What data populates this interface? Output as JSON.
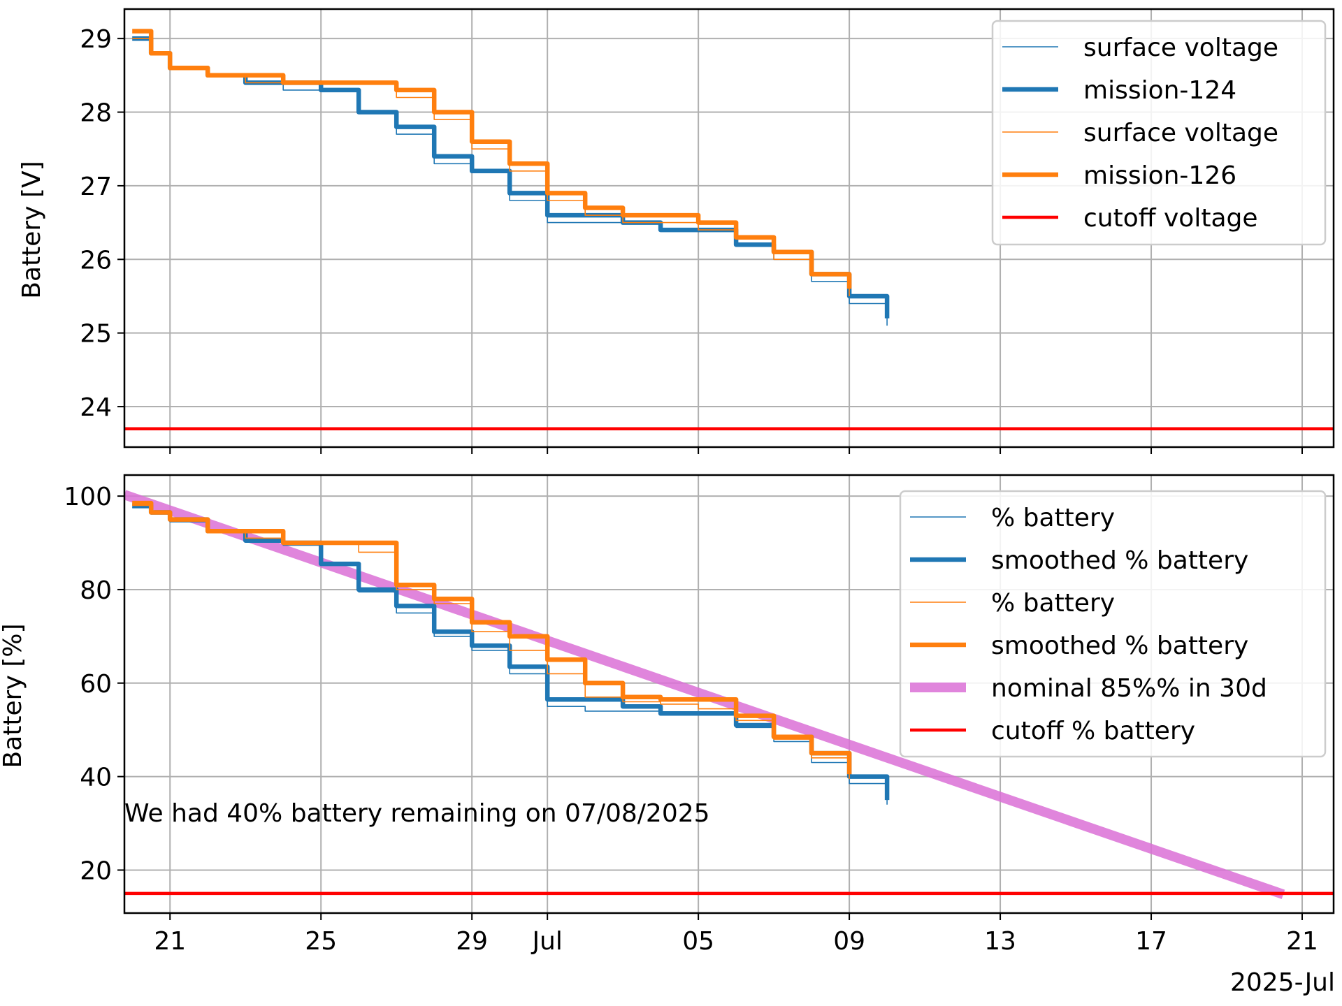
{
  "chart_data": [
    {
      "type": "line",
      "ylabel": "Battery [V]",
      "ylim": [
        23.45,
        29.4
      ],
      "yticks": [
        24,
        25,
        26,
        27,
        28,
        29
      ],
      "xlim": [
        "2025-06-19 19:00",
        "2025-07-21 20:00"
      ],
      "grid": true,
      "legend": "top-right",
      "series": [
        {
          "name": "surface voltage",
          "color": "#1f77b4",
          "width": "thin",
          "x": [
            "2025-06-20 00:00",
            "2025-06-20 12:00",
            "2025-06-21 00:00",
            "2025-06-22 00:00",
            "2025-06-23 00:00",
            "2025-06-24 00:00",
            "2025-06-25 00:00",
            "2025-06-26 00:00",
            "2025-06-27 00:00",
            "2025-06-28 00:00",
            "2025-06-29 00:00",
            "2025-06-30 00:00",
            "2025-07-01 00:00",
            "2025-07-02 00:00",
            "2025-07-03 00:00",
            "2025-07-04 00:00",
            "2025-07-05 00:00",
            "2025-07-06 00:00",
            "2025-07-07 00:00",
            "2025-07-08 00:00",
            "2025-07-09 00:00",
            "2025-07-10 00:00"
          ],
          "values": [
            29.0,
            28.8,
            28.6,
            28.5,
            28.4,
            28.3,
            28.3,
            28.0,
            27.7,
            27.3,
            27.2,
            26.8,
            26.5,
            26.5,
            26.5,
            26.4,
            26.4,
            26.2,
            26.0,
            25.7,
            25.4,
            25.1
          ]
        },
        {
          "name": "mission-124",
          "color": "#1f77b4",
          "width": "thick",
          "x": [
            "2025-06-20 00:00",
            "2025-06-20 12:00",
            "2025-06-21 00:00",
            "2025-06-22 00:00",
            "2025-06-23 00:00",
            "2025-06-24 00:00",
            "2025-06-25 00:00",
            "2025-06-26 00:00",
            "2025-06-27 00:00",
            "2025-06-28 00:00",
            "2025-06-29 00:00",
            "2025-06-30 00:00",
            "2025-07-01 00:00",
            "2025-07-02 00:00",
            "2025-07-03 00:00",
            "2025-07-04 00:00",
            "2025-07-05 00:00",
            "2025-07-06 00:00",
            "2025-07-07 00:00",
            "2025-07-08 00:00",
            "2025-07-09 00:00",
            "2025-07-10 00:00"
          ],
          "values": [
            29.0,
            28.8,
            28.6,
            28.5,
            28.4,
            28.4,
            28.3,
            28.0,
            27.8,
            27.4,
            27.2,
            26.9,
            26.6,
            26.6,
            26.5,
            26.4,
            26.4,
            26.2,
            26.1,
            25.8,
            25.5,
            25.2
          ]
        },
        {
          "name": "surface voltage",
          "color": "#ff7f0e",
          "width": "thin",
          "x": [
            "2025-06-20 00:00",
            "2025-06-20 12:00",
            "2025-06-21 00:00",
            "2025-06-22 00:00",
            "2025-06-23 00:00",
            "2025-06-24 00:00",
            "2025-06-25 00:00",
            "2025-06-26 00:00",
            "2025-06-27 00:00",
            "2025-06-28 00:00",
            "2025-06-29 00:00",
            "2025-06-30 00:00",
            "2025-07-01 00:00",
            "2025-07-02 00:00",
            "2025-07-03 00:00",
            "2025-07-04 00:00",
            "2025-07-05 00:00",
            "2025-07-06 00:00",
            "2025-07-07 00:00",
            "2025-07-08 00:00",
            "2025-07-09 00:00"
          ],
          "values": [
            29.0,
            28.8,
            28.6,
            28.5,
            28.4,
            28.4,
            28.4,
            28.4,
            28.2,
            27.9,
            27.5,
            27.2,
            26.8,
            26.6,
            26.5,
            26.5,
            26.4,
            26.3,
            26.0,
            25.8,
            25.5
          ]
        },
        {
          "name": "mission-126",
          "color": "#ff7f0e",
          "width": "thick",
          "x": [
            "2025-06-20 00:00",
            "2025-06-20 12:00",
            "2025-06-21 00:00",
            "2025-06-22 00:00",
            "2025-06-23 00:00",
            "2025-06-24 00:00",
            "2025-06-25 00:00",
            "2025-06-26 00:00",
            "2025-06-27 00:00",
            "2025-06-28 00:00",
            "2025-06-29 00:00",
            "2025-06-30 00:00",
            "2025-07-01 00:00",
            "2025-07-02 00:00",
            "2025-07-03 00:00",
            "2025-07-04 00:00",
            "2025-07-05 00:00",
            "2025-07-06 00:00",
            "2025-07-07 00:00",
            "2025-07-08 00:00",
            "2025-07-09 00:00"
          ],
          "values": [
            29.1,
            28.8,
            28.6,
            28.5,
            28.5,
            28.4,
            28.4,
            28.4,
            28.3,
            28.0,
            27.6,
            27.3,
            26.9,
            26.7,
            26.6,
            26.6,
            26.5,
            26.3,
            26.1,
            25.8,
            25.6
          ]
        },
        {
          "name": "cutoff voltage",
          "color": "#ff0000",
          "width": "medium",
          "x": [
            "2025-06-19 19:00",
            "2025-07-21 20:00"
          ],
          "values": [
            23.7,
            23.7
          ]
        }
      ]
    },
    {
      "type": "line",
      "xlabel": "2025-Jul",
      "ylabel": "Battery [%]",
      "ylim": [
        10.8,
        104.5
      ],
      "yticks": [
        20,
        40,
        60,
        80,
        100
      ],
      "xticks": [
        "21",
        "25",
        "29",
        "Jul",
        "05",
        "09",
        "13",
        "17",
        "21"
      ],
      "xlim": [
        "2025-06-19 19:00",
        "2025-07-21 20:00"
      ],
      "grid": true,
      "legend": "top-right",
      "annotation": "We had 40% battery remaining on 07/08/2025",
      "series": [
        {
          "name": "% battery",
          "color": "#1f77b4",
          "width": "thin",
          "x": [
            "2025-06-20 00:00",
            "2025-06-20 12:00",
            "2025-06-21 00:00",
            "2025-06-22 00:00",
            "2025-06-23 00:00",
            "2025-06-24 00:00",
            "2025-06-25 00:00",
            "2025-06-26 00:00",
            "2025-06-27 00:00",
            "2025-06-28 00:00",
            "2025-06-29 00:00",
            "2025-06-30 00:00",
            "2025-07-01 00:00",
            "2025-07-02 00:00",
            "2025-07-03 00:00",
            "2025-07-04 00:00",
            "2025-07-05 00:00",
            "2025-07-06 00:00",
            "2025-07-07 00:00",
            "2025-07-08 00:00",
            "2025-07-09 00:00",
            "2025-07-10 00:00"
          ],
          "values": [
            97.5,
            96.5,
            94.5,
            92.5,
            90.5,
            89.5,
            85.5,
            79.5,
            75,
            70,
            67,
            62,
            55,
            54,
            54,
            53.5,
            53.5,
            50.5,
            47.5,
            43,
            38.5,
            34
          ]
        },
        {
          "name": "smoothed % battery",
          "color": "#1f77b4",
          "width": "thick",
          "x": [
            "2025-06-20 00:00",
            "2025-06-20 12:00",
            "2025-06-21 00:00",
            "2025-06-22 00:00",
            "2025-06-23 00:00",
            "2025-06-24 00:00",
            "2025-06-25 00:00",
            "2025-06-26 00:00",
            "2025-06-27 00:00",
            "2025-06-28 00:00",
            "2025-06-29 00:00",
            "2025-06-30 00:00",
            "2025-07-01 00:00",
            "2025-07-02 00:00",
            "2025-07-03 00:00",
            "2025-07-04 00:00",
            "2025-07-05 00:00",
            "2025-07-06 00:00",
            "2025-07-07 00:00",
            "2025-07-08 00:00",
            "2025-07-09 00:00",
            "2025-07-10 00:00"
          ],
          "values": [
            98,
            96.5,
            95,
            92.5,
            90.5,
            90,
            85.5,
            80,
            76.5,
            71,
            68,
            63.5,
            56.5,
            56.5,
            55,
            53.5,
            53.5,
            51,
            48.5,
            45,
            40,
            35
          ]
        },
        {
          "name": "% battery",
          "color": "#ff7f0e",
          "width": "thin",
          "x": [
            "2025-06-20 00:00",
            "2025-06-20 12:00",
            "2025-06-21 00:00",
            "2025-06-22 00:00",
            "2025-06-23 00:00",
            "2025-06-24 00:00",
            "2025-06-25 00:00",
            "2025-06-26 00:00",
            "2025-06-27 00:00",
            "2025-06-28 00:00",
            "2025-06-29 00:00",
            "2025-06-30 00:00",
            "2025-07-01 00:00",
            "2025-07-02 00:00",
            "2025-07-03 00:00",
            "2025-07-04 00:00",
            "2025-07-05 00:00",
            "2025-07-06 00:00",
            "2025-07-07 00:00",
            "2025-07-08 00:00",
            "2025-07-09 00:00"
          ],
          "values": [
            98,
            96.5,
            95,
            92.5,
            91,
            90,
            90,
            88,
            80,
            77,
            71,
            67,
            62,
            57,
            56,
            55.5,
            54.5,
            52,
            48,
            44,
            39.5
          ]
        },
        {
          "name": "smoothed % battery",
          "color": "#ff7f0e",
          "width": "thick",
          "x": [
            "2025-06-20 00:00",
            "2025-06-20 12:00",
            "2025-06-21 00:00",
            "2025-06-22 00:00",
            "2025-06-23 00:00",
            "2025-06-24 00:00",
            "2025-06-25 00:00",
            "2025-06-26 00:00",
            "2025-06-27 00:00",
            "2025-06-28 00:00",
            "2025-06-29 00:00",
            "2025-06-30 00:00",
            "2025-07-01 00:00",
            "2025-07-02 00:00",
            "2025-07-03 00:00",
            "2025-07-04 00:00",
            "2025-07-05 00:00",
            "2025-07-06 00:00",
            "2025-07-07 00:00",
            "2025-07-08 00:00",
            "2025-07-09 00:00"
          ],
          "values": [
            98.5,
            96.5,
            95,
            92.5,
            92.5,
            90,
            90,
            90,
            81,
            78,
            73,
            70,
            65,
            60,
            57,
            56.5,
            56.5,
            53,
            48.5,
            45,
            40.5
          ]
        },
        {
          "name": "nominal 85%% in 30d",
          "color": "#da70d6",
          "width": "band",
          "x": [
            "2025-06-19 19:00",
            "2025-07-20 12:00"
          ],
          "values": [
            100.3,
            14.8
          ]
        },
        {
          "name": "cutoff % battery",
          "color": "#ff0000",
          "width": "medium",
          "x": [
            "2025-06-19 19:00",
            "2025-07-21 20:00"
          ],
          "values": [
            15,
            15
          ]
        }
      ]
    }
  ]
}
